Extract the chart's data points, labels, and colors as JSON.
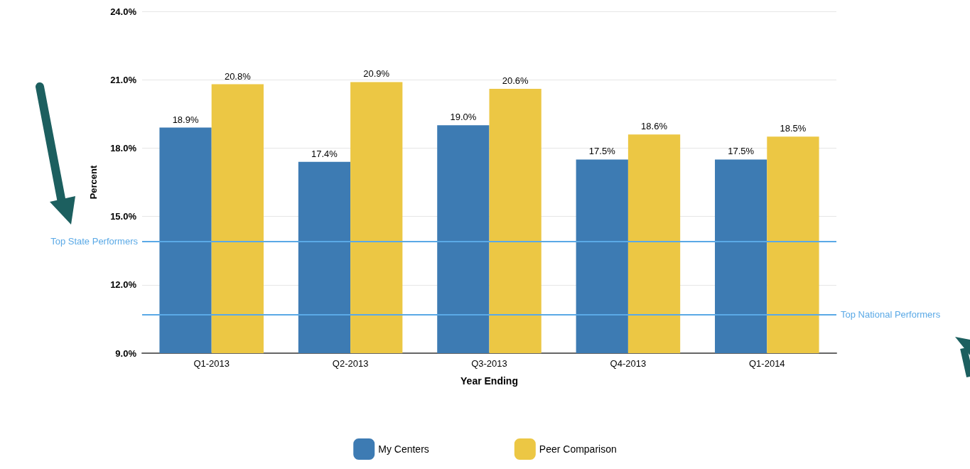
{
  "chart_data": {
    "type": "bar",
    "xlabel": "Year Ending",
    "ylabel": "Percent",
    "categories": [
      "Q1-2013",
      "Q2-2013",
      "Q3-2013",
      "Q4-2013",
      "Q1-2014"
    ],
    "series": [
      {
        "name": "My Centers",
        "color": "#3d7bb3",
        "values": [
          18.9,
          17.4,
          19.0,
          17.5,
          17.5
        ],
        "value_labels": [
          "18.9%",
          "17.4%",
          "19.0%",
          "17.5%",
          "17.5%"
        ]
      },
      {
        "name": "Peer Comparison",
        "color": "#ecc744",
        "values": [
          20.8,
          20.9,
          20.6,
          18.6,
          18.5
        ],
        "value_labels": [
          "20.8%",
          "20.9%",
          "20.6%",
          "18.6%",
          "18.5%"
        ]
      }
    ],
    "ylim": [
      9,
      24
    ],
    "yticks": [
      {
        "value": 9,
        "label": "9.0%"
      },
      {
        "value": 12,
        "label": "12.0%"
      },
      {
        "value": 15,
        "label": "15.0%"
      },
      {
        "value": 18,
        "label": "18.0%"
      },
      {
        "value": 21,
        "label": "21.0%"
      },
      {
        "value": 24,
        "label": "24.0%"
      }
    ],
    "ref_lines": [
      {
        "axis": "y",
        "value": 13.9,
        "label": "Top State Performers",
        "color": "#5aa9e6"
      },
      {
        "axis": "y",
        "value": 10.7,
        "label": "Top National Performers",
        "color": "#5aa9e6"
      }
    ],
    "grid": "y",
    "legend": "bottom"
  }
}
